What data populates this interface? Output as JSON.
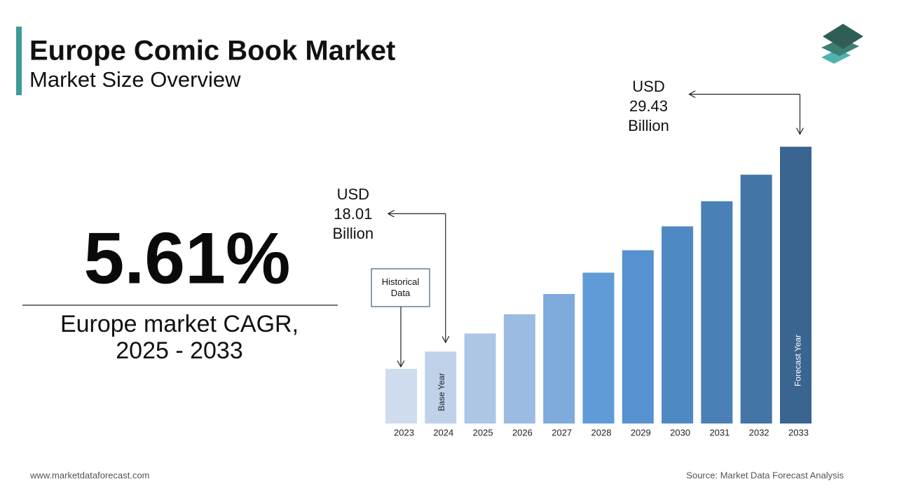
{
  "header": {
    "title": "Europe Comic Book Market",
    "subtitle": "Market Size Overview"
  },
  "highlight": {
    "cagr": "5.61%",
    "cagr_label": [
      "Europe market CAGR,",
      "2025 - 2033"
    ]
  },
  "chart_data": {
    "type": "bar",
    "categories": [
      "2023",
      "2024",
      "2025",
      "2026",
      "2027",
      "2028",
      "2029",
      "2030",
      "2031",
      "2032",
      "2033"
    ],
    "values": [
      17.05,
      18.01,
      19.02,
      20.09,
      21.22,
      22.41,
      23.66,
      24.99,
      26.39,
      27.87,
      29.43
    ],
    "value_labels": [
      null,
      "USD 18.01 Billion",
      null,
      null,
      null,
      null,
      null,
      null,
      null,
      null,
      "USD 29.43 Billion"
    ],
    "colors": [
      "#cfdcee",
      "#bfd2ea",
      "#aec6e6",
      "#9bbbe2",
      "#7eaadc",
      "#5f9bd6",
      "#5592cf",
      "#4f89c3",
      "#4a80b6",
      "#4375a6",
      "#3a6590"
    ],
    "ylim": [
      14,
      30
    ],
    "annotations": {
      "historical": "Historical Data",
      "base_year": "Base Year",
      "forecast_year": "Forecast Year"
    }
  },
  "footer": {
    "website": "www.marketdataforecast.com",
    "source": "Source: Market Data Forecast Analysis"
  }
}
